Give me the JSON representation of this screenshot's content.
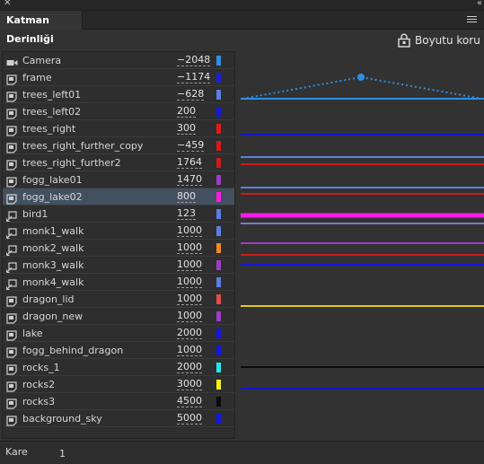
{
  "panel": {
    "close_glyph": "✕",
    "collapse_glyph": "‹‹",
    "tab_title": "Katman Derinliği",
    "preserve_label": "Boyutu koru",
    "footer_label": "Kare",
    "footer_value": "1"
  },
  "layers": [
    {
      "name": "Camera",
      "depth": "−2048",
      "color": "#2d8fe3",
      "icon": "camera-icon",
      "selected": false
    },
    {
      "name": "frame",
      "depth": "−1174",
      "color": "#1c1cdc",
      "icon": "layer-icon",
      "selected": false
    },
    {
      "name": "trees_left01",
      "depth": "−628",
      "color": "#5a7fe0",
      "icon": "layer-icon",
      "selected": false
    },
    {
      "name": "trees_left02",
      "depth": "200",
      "color": "#1515e6",
      "icon": "layer-icon",
      "selected": false
    },
    {
      "name": "trees_right",
      "depth": "300",
      "color": "#e01a1a",
      "icon": "layer-icon",
      "selected": false
    },
    {
      "name": "trees_right_further_copy",
      "depth": "−459",
      "color": "#d81818",
      "icon": "layer-icon",
      "selected": false
    },
    {
      "name": "trees_right_further2",
      "depth": "1764",
      "color": "#cc1a1a",
      "icon": "layer-icon",
      "selected": false
    },
    {
      "name": "fogg_lake01",
      "depth": "1470",
      "color": "#9b3dc8",
      "icon": "layer-icon",
      "selected": false
    },
    {
      "name": "fogg_lake02",
      "depth": "800",
      "color": "#ff1ae6",
      "icon": "layer-icon",
      "selected": true
    },
    {
      "name": "bird1",
      "depth": "123",
      "color": "#5a7fe0",
      "icon": "symbol-icon",
      "selected": false
    },
    {
      "name": "monk1_walk",
      "depth": "1000",
      "color": "#5a7fe0",
      "icon": "symbol-icon",
      "selected": false
    },
    {
      "name": "monk2_walk",
      "depth": "1000",
      "color": "#f08a1c",
      "icon": "symbol-icon",
      "selected": false
    },
    {
      "name": "monk3_walk",
      "depth": "1000",
      "color": "#9b3dc8",
      "icon": "symbol-icon",
      "selected": false
    },
    {
      "name": "monk4_walk",
      "depth": "1000",
      "color": "#5a7fe0",
      "icon": "symbol-icon",
      "selected": false
    },
    {
      "name": "dragon_lid",
      "depth": "1000",
      "color": "#e84a4a",
      "icon": "layer-icon",
      "selected": false
    },
    {
      "name": "dragon_new",
      "depth": "1000",
      "color": "#9b3dc8",
      "icon": "layer-icon",
      "selected": false
    },
    {
      "name": "lake",
      "depth": "2000",
      "color": "#1515e6",
      "icon": "layer-icon",
      "selected": false
    },
    {
      "name": "fogg_behind_dragon",
      "depth": "1000",
      "color": "#1515e6",
      "icon": "layer-icon",
      "selected": false
    },
    {
      "name": "rocks_1",
      "depth": "2000",
      "color": "#22e6ee",
      "icon": "layer-icon",
      "selected": false
    },
    {
      "name": "rocks2",
      "depth": "3000",
      "color": "#f2f21a",
      "icon": "layer-icon",
      "selected": false
    },
    {
      "name": "rocks3",
      "depth": "4500",
      "color": "#0a0a0a",
      "icon": "layer-icon",
      "selected": false
    },
    {
      "name": "background_sky",
      "depth": "5000",
      "color": "#1515e6",
      "icon": "layer-icon",
      "selected": false
    }
  ],
  "depth_lines": [
    {
      "color": "#1515cc",
      "thick": false
    },
    {
      "color": "#5a7fe0",
      "thick": false
    },
    {
      "color": "#cc1a1a",
      "thick": false
    },
    {
      "color": "#5a7fe0",
      "thick": false
    },
    {
      "color": "#cc1a1a",
      "thick": false
    },
    {
      "color": "#ff1ae6",
      "thick": true
    },
    {
      "color": "#7a7ad0",
      "thick": false
    },
    {
      "color": "#9b3dc8",
      "thick": false
    },
    {
      "color": "#cc1a1a",
      "thick": false
    },
    {
      "color": "#1515e6",
      "thick": false
    },
    {
      "color": "#e0c81a",
      "thick": false
    },
    {
      "color": "#0a0a0a",
      "thick": false
    },
    {
      "color": "#1515cc",
      "thick": false
    }
  ],
  "camera_line_color": "#2d8fe3"
}
